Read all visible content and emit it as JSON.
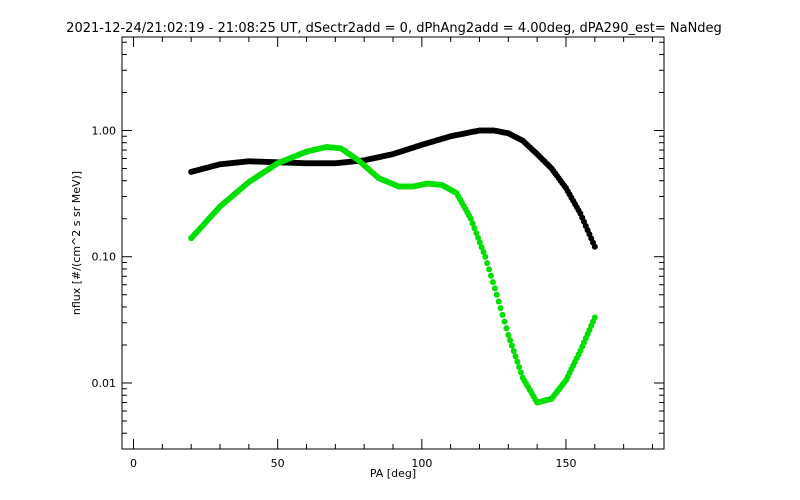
{
  "chart_data": {
    "type": "scatter",
    "title": "2021-12-24/21:02:19 - 21:08:25 UT, dSectr2add = 0, dPhAng2add = 4.00deg, dPA290_est=    NaNdeg",
    "xlabel": "PA [deg]",
    "ylabel": "nflux [#/(cm^2 s sr MeV)]",
    "xlim": [
      -4,
      184
    ],
    "ylim": [
      0.003,
      5.5
    ],
    "yscale": "log",
    "grid": false,
    "x_ticks": [
      {
        "value": 0,
        "label": "0"
      },
      {
        "value": 50,
        "label": "50"
      },
      {
        "value": 100,
        "label": "100"
      },
      {
        "value": 150,
        "label": "150"
      }
    ],
    "y_ticks": [
      {
        "value": 0.01,
        "label": "0.01"
      },
      {
        "value": 0.1,
        "label": "0.10"
      },
      {
        "value": 1,
        "label": "1.00"
      }
    ],
    "series": [
      {
        "color": "#000000",
        "points": [
          [
            20,
            0.47
          ],
          [
            30,
            0.54
          ],
          [
            40,
            0.57
          ],
          [
            50,
            0.56
          ],
          [
            60,
            0.55
          ],
          [
            70,
            0.55
          ],
          [
            80,
            0.58
          ],
          [
            90,
            0.65
          ],
          [
            100,
            0.77
          ],
          [
            110,
            0.9
          ],
          [
            120,
            1.0
          ],
          [
            125,
            1.0
          ],
          [
            130,
            0.95
          ],
          [
            135,
            0.83
          ],
          [
            140,
            0.65
          ],
          [
            145,
            0.5
          ],
          [
            150,
            0.35
          ],
          [
            155,
            0.22
          ],
          [
            160,
            0.12
          ]
        ]
      },
      {
        "color": "#00e000",
        "points": [
          [
            20,
            0.14
          ],
          [
            30,
            0.25
          ],
          [
            40,
            0.39
          ],
          [
            50,
            0.55
          ],
          [
            60,
            0.68
          ],
          [
            67,
            0.74
          ],
          [
            72,
            0.72
          ],
          [
            78,
            0.58
          ],
          [
            85,
            0.42
          ],
          [
            92,
            0.36
          ],
          [
            97,
            0.36
          ],
          [
            102,
            0.38
          ],
          [
            107,
            0.37
          ],
          [
            112,
            0.32
          ],
          [
            117,
            0.2
          ],
          [
            122,
            0.1
          ],
          [
            126,
            0.05
          ],
          [
            130,
            0.024
          ],
          [
            135,
            0.011
          ],
          [
            140,
            0.007
          ],
          [
            145,
            0.0075
          ],
          [
            150,
            0.0105
          ],
          [
            155,
            0.018
          ],
          [
            160,
            0.033
          ]
        ]
      }
    ]
  }
}
